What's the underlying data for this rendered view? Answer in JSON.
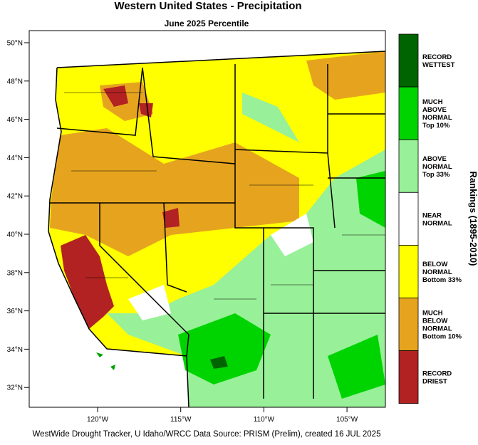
{
  "header": {
    "title": "Western United States - Precipitation",
    "subtitle": "June 2025 Percentile"
  },
  "map": {
    "lat_labels": [
      "50°N",
      "48°N",
      "46°N",
      "44°N",
      "42°N",
      "40°N",
      "38°N",
      "36°N",
      "34°N",
      "32°N"
    ],
    "lon_labels": [
      "120°W",
      "115°W",
      "110°W",
      "105°W"
    ]
  },
  "legend": {
    "title": "Rankings (1895-2010)",
    "items": [
      {
        "lines": [
          "RECORD",
          "WETTEST"
        ],
        "color": "#006400"
      },
      {
        "lines": [
          "MUCH",
          "ABOVE",
          "NORMAL",
          "Top 10%"
        ],
        "color": "#00d400"
      },
      {
        "lines": [
          "ABOVE",
          "NORMAL",
          "Top 33%"
        ],
        "color": "#98f098"
      },
      {
        "lines": [
          "NEAR",
          "NORMAL"
        ],
        "color": "#ffffff"
      },
      {
        "lines": [
          "BELOW",
          "NORMAL",
          "Bottom 33%"
        ],
        "color": "#ffff00"
      },
      {
        "lines": [
          "MUCH",
          "BELOW",
          "NORMAL",
          "Bottom 10%"
        ],
        "color": "#e6a41e"
      },
      {
        "lines": [
          "RECORD",
          "DRIEST"
        ],
        "color": "#b22222"
      }
    ]
  },
  "footer": {
    "credit": "WestWide Drought Tracker, U Idaho/WRCC Data Source: PRISM (Prelim), created 16 JUL 2025"
  }
}
